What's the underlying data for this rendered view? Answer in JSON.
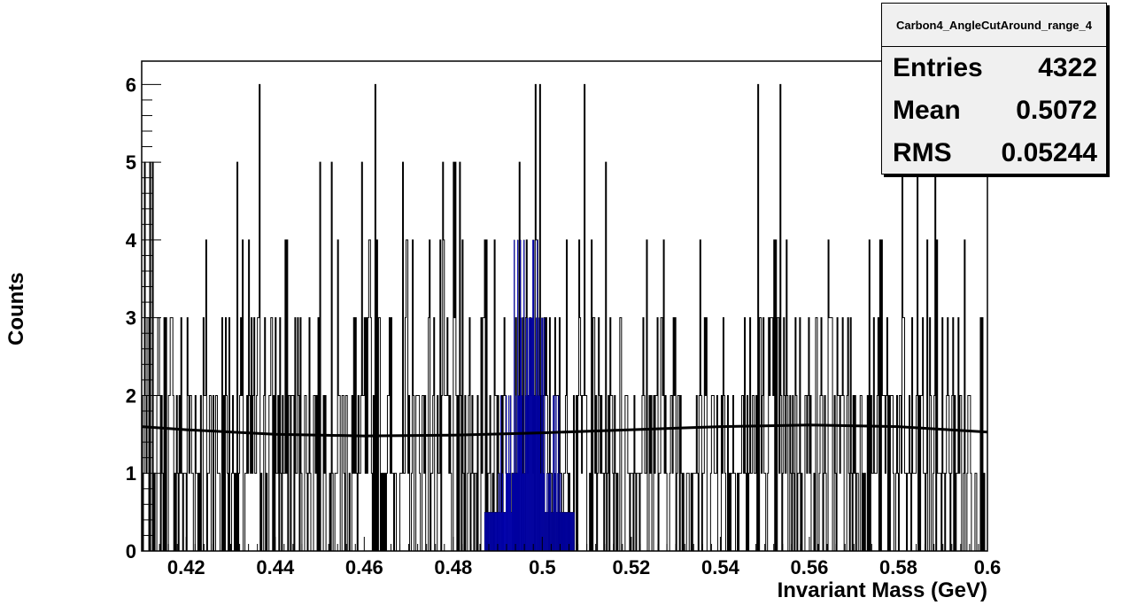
{
  "chart_data": {
    "type": "histogram",
    "xlabel": "Invariant Mass (GeV)",
    "ylabel": "Counts",
    "xlim": [
      0.41,
      0.6
    ],
    "ylim": [
      0,
      6.3
    ],
    "x_ticks": [
      "0.42",
      "0.44",
      "0.46",
      "0.48",
      "0.5",
      "0.52",
      "0.54",
      "0.56",
      "0.58",
      "0.6"
    ],
    "y_ticks": [
      "0",
      "1",
      "2",
      "3",
      "4",
      "5",
      "6"
    ],
    "stats": {
      "title": "Carbon4_AngleCutAround_range_4",
      "entries_label": "Entries",
      "entries": "4322",
      "mean_label": "Mean",
      "mean": "0.5072",
      "rms_label": "RMS",
      "rms": "0.05244"
    },
    "series": [
      {
        "kind": "histogram",
        "color": "#000000",
        "bin_width": 0.0002,
        "typical_counts": [
          0,
          1,
          2,
          3,
          4
        ],
        "max_count": 6,
        "note_peaks_at_6": [
          0.4365,
          0.4625,
          0.4985,
          0.4995,
          0.5095,
          0.5485,
          0.5535
        ]
      },
      {
        "kind": "histogram-highlight",
        "color": "#0000ff",
        "range": [
          0.487,
          0.507
        ],
        "max_count": 4
      },
      {
        "kind": "fit-curve",
        "color": "#000000",
        "x": [
          0.41,
          0.42,
          0.44,
          0.46,
          0.48,
          0.5,
          0.52,
          0.54,
          0.56,
          0.58,
          0.6
        ],
        "y": [
          1.6,
          1.56,
          1.5,
          1.48,
          1.49,
          1.52,
          1.56,
          1.6,
          1.62,
          1.6,
          1.53
        ]
      }
    ]
  }
}
